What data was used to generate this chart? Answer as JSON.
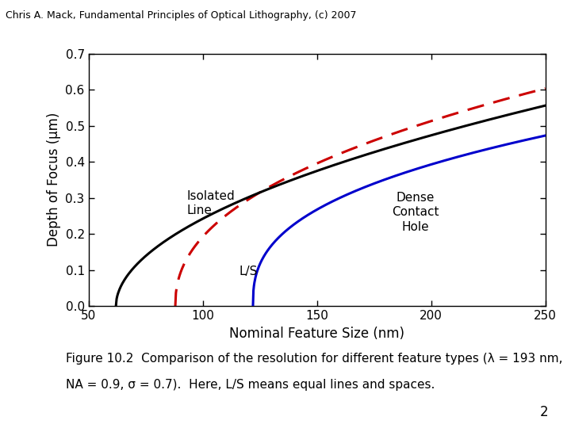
{
  "lambda_nm": 193,
  "NA": 0.9,
  "sigma": 0.7,
  "xlim": [
    50,
    250
  ],
  "ylim": [
    0,
    0.7
  ],
  "xlabel": "Nominal Feature Size (nm)",
  "ylabel": "Depth of Focus (μm)",
  "header": "Chris A. Mack, Fundamental Principles of Optical Lithography, (c) 2007",
  "caption_line1": "Figure 10.2  Comparison of the resolution for different feature types (λ = 193 nm,",
  "caption_line2": "NA = 0.9, σ = 0.7).  Here, L/S means equal lines and spaces.",
  "page_number": "2",
  "label_isolated": "Isolated\nLine",
  "label_ls": "L/S",
  "label_contact": "Dense\nContact\nHole",
  "color_isolated": "#000000",
  "color_ls": "#cc0000",
  "color_contact": "#0000cc",
  "xticks": [
    50,
    100,
    150,
    200,
    250
  ],
  "yticks": [
    0,
    0.1,
    0.2,
    0.3,
    0.4,
    0.5,
    0.6,
    0.7
  ],
  "iso_cd_min": 62.0,
  "iso_scale": 4.5,
  "iso_alpha": 0.52,
  "ls_cd_min": 88.0,
  "ls_scale": 4.8,
  "ls_alpha": 0.52,
  "cont_cd_min": 122.0,
  "cont_scale_a": 3.2,
  "cont_alpha_a": 0.3,
  "cont_scale_b": 0.9,
  "cont_alpha_b": 0.55
}
